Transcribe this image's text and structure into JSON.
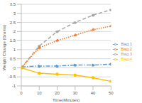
{
  "chart_data": {
    "type": "line",
    "x_label": "Time(Minutes)",
    "y_label": "Weight Change (Grams)",
    "x": [
      0,
      10,
      20,
      30,
      40,
      50
    ],
    "xlim": [
      0,
      50
    ],
    "xticks": [
      0,
      10,
      20,
      30,
      40,
      50
    ],
    "ylim": [
      -1,
      3.5
    ],
    "yticks": [
      -1,
      -0.5,
      0,
      0.5,
      1,
      1.5,
      2,
      2.5,
      3,
      3.5
    ],
    "grid": true,
    "legend": "right",
    "series": [
      {
        "name": "Bag 3",
        "color": "#a5a5a5",
        "line_style": "dashed",
        "marker": "circle",
        "values": [
          0,
          1.2,
          2.0,
          2.5,
          2.9,
          3.2
        ]
      },
      {
        "name": "Bag 2",
        "color": "#ed7d31",
        "line_style": "dotted",
        "marker": "circle",
        "values": [
          0,
          1.1,
          1.5,
          1.8,
          2.1,
          2.3
        ]
      },
      {
        "name": "Bag 1",
        "color": "#5b9bd5",
        "line_style": "dashdot",
        "marker": "circle",
        "values": [
          0.05,
          0.1,
          0.1,
          0.15,
          0.15,
          0.2
        ]
      },
      {
        "name": "Bag 4",
        "color": "#ffc000",
        "line_style": "solid",
        "marker": "circle",
        "values": [
          0,
          -0.3,
          -0.35,
          -0.4,
          -0.55,
          -0.75
        ]
      }
    ]
  }
}
